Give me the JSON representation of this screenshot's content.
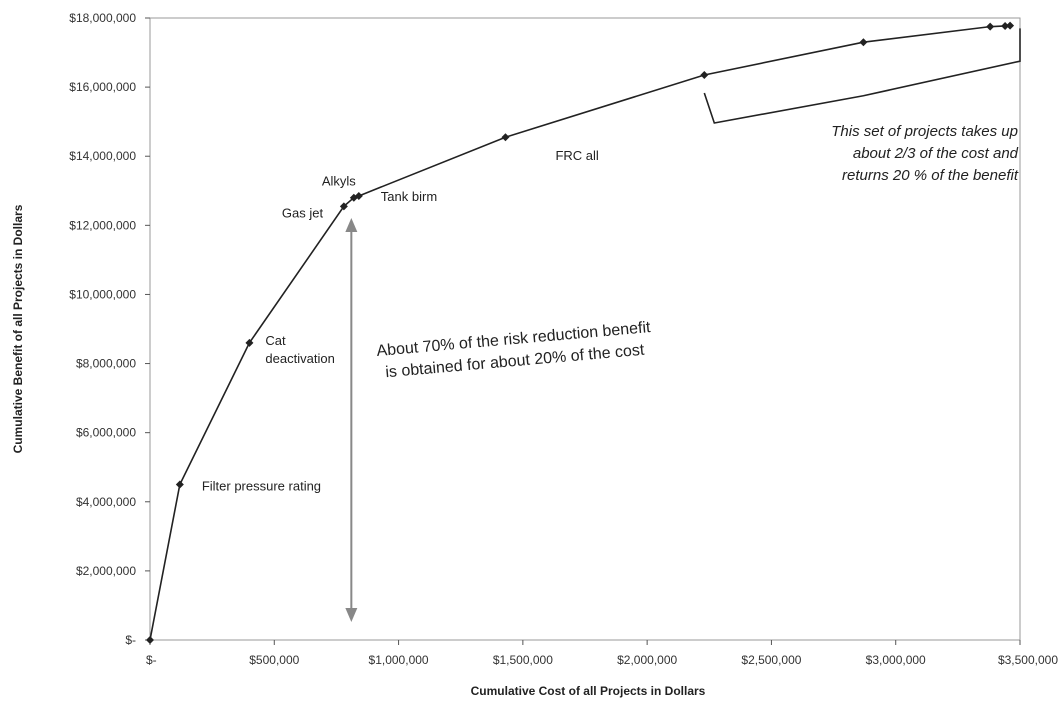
{
  "chart_data": {
    "type": "line",
    "title": "",
    "xlabel": "Cumulative Cost of all Projects in Dollars",
    "ylabel": "Cumulative Benefit of all Projects in Dollars",
    "xlim": [
      0,
      3500000
    ],
    "ylim": [
      0,
      18000000
    ],
    "x_ticks": [
      0,
      500000,
      1000000,
      1500000,
      2000000,
      2500000,
      3000000,
      3500000
    ],
    "x_tick_labels": [
      "$-",
      "$500,000",
      "$1,000,000",
      "$1,500,000",
      "$2,000,000",
      "$2,500,000",
      "$3,000,000",
      "$3,500,000"
    ],
    "y_ticks": [
      0,
      2000000,
      4000000,
      6000000,
      8000000,
      10000000,
      12000000,
      14000000,
      16000000,
      18000000
    ],
    "y_tick_labels": [
      "$-",
      "$2,000,000",
      "$4,000,000",
      "$6,000,000",
      "$8,000,000",
      "$10,000,000",
      "$12,000,000",
      "$14,000,000",
      "$16,000,000",
      "$18,000,000"
    ],
    "grid": false,
    "legend": "none",
    "series": [
      {
        "color": "#222222",
        "points": [
          {
            "x": 0,
            "y": 0,
            "label": ""
          },
          {
            "x": 120000,
            "y": 4500000,
            "label": "Filter pressure rating"
          },
          {
            "x": 400000,
            "y": 8600000,
            "label": "Cat deactivation"
          },
          {
            "x": 780000,
            "y": 12550000,
            "label": "Gas jet"
          },
          {
            "x": 820000,
            "y": 12800000,
            "label": "Alkyls"
          },
          {
            "x": 840000,
            "y": 12850000,
            "label": "Tank birm"
          },
          {
            "x": 1430000,
            "y": 14550000,
            "label": "FRC all"
          },
          {
            "x": 2230000,
            "y": 16350000,
            "label": ""
          },
          {
            "x": 2870000,
            "y": 17300000,
            "label": ""
          },
          {
            "x": 3380000,
            "y": 17750000,
            "label": ""
          },
          {
            "x": 3440000,
            "y": 17770000,
            "label": ""
          },
          {
            "x": 3460000,
            "y": 17780000,
            "label": ""
          }
        ]
      }
    ],
    "annotations": {
      "arrow": {
        "x": 810000,
        "y_from": 12500000,
        "y_to": 0,
        "color": "#888888"
      },
      "arrow_text": [
        "About 70% of the risk reduction benefit",
        "is obtained for about 20% of the cost"
      ],
      "bracket_text": [
        "This set of projects takes up",
        "about 2/3 of the cost and",
        "returns 20 % of the benefit"
      ]
    }
  }
}
